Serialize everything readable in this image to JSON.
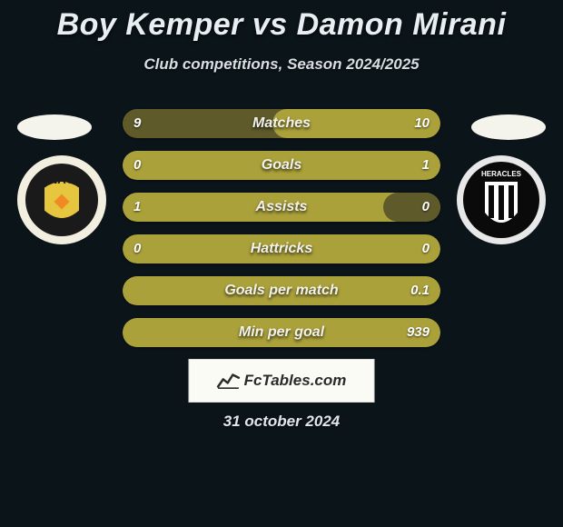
{
  "title": "Boy Kemper vs Damon Mirani",
  "subtitle": "Club competitions, Season 2024/2025",
  "date": "31 october 2024",
  "brand_text": "FcTables.com",
  "colors": {
    "bar_highlight": "#aba13a",
    "bar_track": "#5f5a2a",
    "background": "#0b1419"
  },
  "left_badge": {
    "label": "NAC",
    "ring": "#f3efe0",
    "bg": "#1a1a1a",
    "accent": "#e6c63f"
  },
  "right_badge": {
    "label": "HERACLES",
    "ring": "#e8e8e8",
    "bg": "#0a0a0a",
    "accent": "#ffffff"
  },
  "stats": [
    {
      "metric": "Matches",
      "left_val": "9",
      "right_val": "10",
      "left_pct": 47,
      "right_pct": 53,
      "winner": "right"
    },
    {
      "metric": "Goals",
      "left_val": "0",
      "right_val": "1",
      "left_pct": 18,
      "right_pct": 100,
      "winner": "right"
    },
    {
      "metric": "Assists",
      "left_val": "1",
      "right_val": "0",
      "left_pct": 100,
      "right_pct": 18,
      "winner": "left"
    },
    {
      "metric": "Hattricks",
      "left_val": "0",
      "right_val": "0",
      "left_pct": 18,
      "right_pct": 18,
      "winner": "none"
    },
    {
      "metric": "Goals per match",
      "left_val": "",
      "right_val": "0.1",
      "left_pct": 18,
      "right_pct": 100,
      "winner": "right"
    },
    {
      "metric": "Min per goal",
      "left_val": "",
      "right_val": "939",
      "left_pct": 18,
      "right_pct": 100,
      "winner": "right"
    }
  ]
}
